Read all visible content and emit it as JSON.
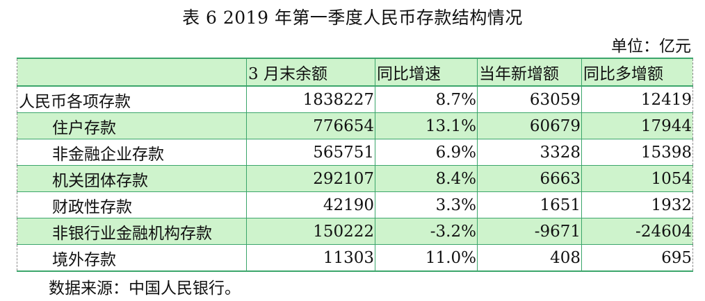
{
  "title": "表 6 2019 年第一季度人民币存款结构情况",
  "unit": "单位：亿元",
  "table": {
    "headers": [
      "",
      "3 月末余额",
      "同比增速",
      "当年新增额",
      "同比多增额"
    ],
    "rows": [
      {
        "name": "人民币各项存款",
        "balance": "1838227",
        "yoy": "8.7%",
        "new": "63059",
        "more": "12419"
      },
      {
        "name": "住户存款",
        "balance": "776654",
        "yoy": "13.1%",
        "new": "60679",
        "more": "17944"
      },
      {
        "name": "非金融企业存款",
        "balance": "565751",
        "yoy": "6.9%",
        "new": "3328",
        "more": "15398"
      },
      {
        "name": "机关团体存款",
        "balance": "292107",
        "yoy": "8.4%",
        "new": "6663",
        "more": "1054"
      },
      {
        "name": "财政性存款",
        "balance": "42190",
        "yoy": "3.3%",
        "new": "1651",
        "more": "1932"
      },
      {
        "name": "非银行业金融机构存款",
        "balance": "150222",
        "yoy": "-3.2%",
        "new": "-9671",
        "more": "-24604"
      },
      {
        "name": "境外存款",
        "balance": "11303",
        "yoy": "11.0%",
        "new": "408",
        "more": "695"
      }
    ]
  },
  "source": "数据来源：中国人民银行。",
  "colors": {
    "header_fill": "#cef3cc",
    "rule": "#3aa56a"
  }
}
